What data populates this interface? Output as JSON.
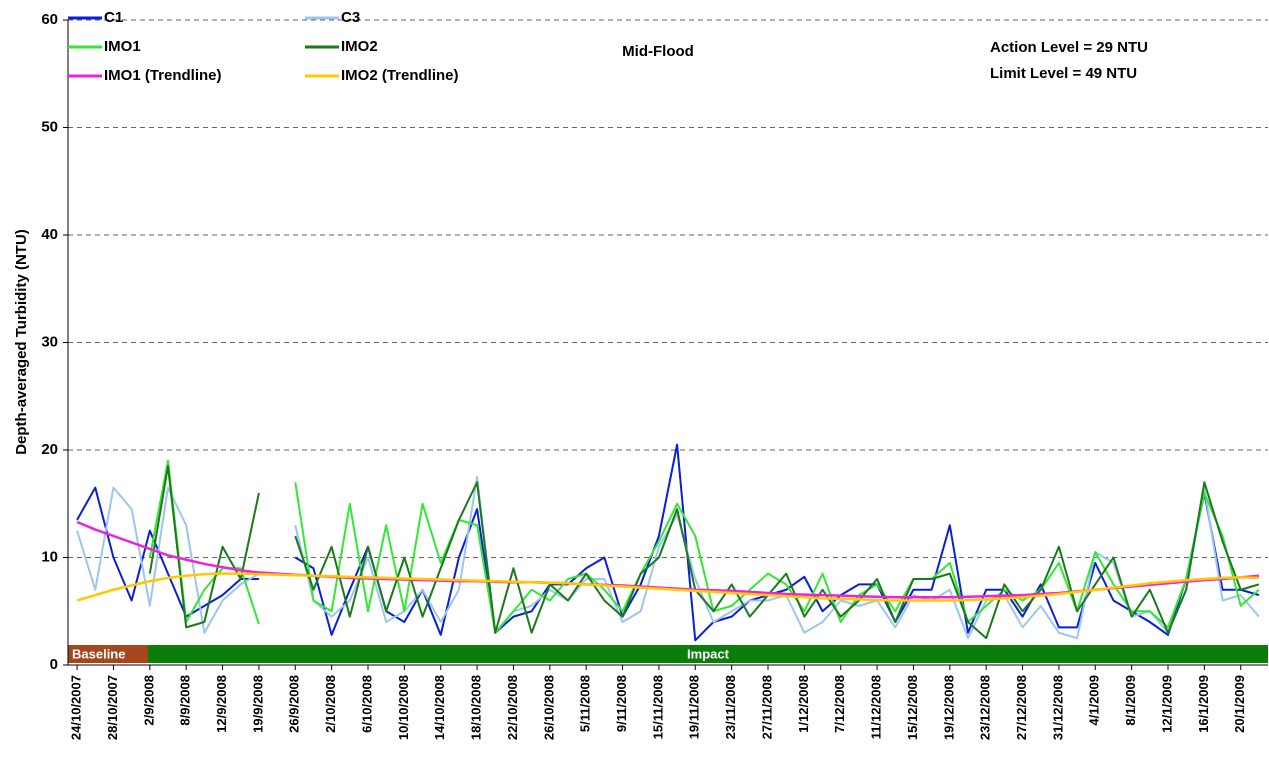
{
  "chart_data": {
    "type": "line",
    "y_label": "Depth-averaged Turbidity (NTU)",
    "annotations": [
      "Mid-Flood",
      "Action Level = 29 NTU",
      "Limit Level = 49 NTU"
    ],
    "phases": [
      {
        "label": "Baseline",
        "color": "#a5461c"
      },
      {
        "label": "Impact",
        "color": "#0b7d0b"
      }
    ],
    "categories": [
      "24/10/2007",
      null,
      "28/10/2007",
      null,
      "2/9/2008",
      null,
      "8/9/2008",
      null,
      "12/9/2008",
      null,
      "19/9/2008",
      null,
      "26/9/2008",
      null,
      "2/10/2008",
      null,
      "6/10/2008",
      null,
      "10/10/2008",
      null,
      "14/10/2008",
      null,
      "18/10/2008",
      null,
      "22/10/2008",
      null,
      "26/10/2008",
      null,
      "5/11/2008",
      null,
      "9/11/2008",
      null,
      "15/11/2008",
      null,
      "19/11/2008",
      null,
      "23/11/2008",
      null,
      "27/11/2008",
      null,
      "1/12/2008",
      null,
      "7/12/2008",
      null,
      "11/12/2008",
      null,
      "15/12/2008",
      null,
      "19/12/2008",
      null,
      "23/12/2008",
      null,
      "27/12/2008",
      null,
      "31/12/2008",
      null,
      "4/1/2009",
      null,
      "8/1/2009",
      null,
      "12/1/2009",
      null,
      "16/1/2009",
      null,
      "20/1/2009",
      null
    ],
    "series": [
      {
        "name": "C1",
        "color": "#0a1ed8",
        "width": 2,
        "values": [
          13.5,
          16.5,
          10,
          6,
          12.5,
          8.5,
          4.5,
          5.5,
          6.5,
          8,
          8,
          null,
          10,
          9,
          2.8,
          7,
          11,
          5,
          4,
          7,
          2.8,
          10,
          14.5,
          3,
          4.5,
          5,
          7.5,
          7.5,
          9,
          10,
          4.5,
          7.5,
          12,
          20.5,
          2.3,
          4,
          4.5,
          6,
          6.5,
          7,
          8.2,
          5,
          6.5,
          7.5,
          7.5,
          4,
          7,
          7,
          13,
          3,
          7,
          7,
          4.5,
          7.5,
          3.5,
          3.5,
          9.5,
          6,
          5,
          4,
          2.8,
          8,
          16,
          7,
          7,
          6.5
        ]
      },
      {
        "name": "C3",
        "color": "#9cc6ee",
        "width": 2,
        "values": [
          12.5,
          7,
          16.5,
          14.5,
          5.5,
          16.5,
          13,
          3,
          6,
          7.5,
          8.5,
          null,
          13,
          6,
          4.5,
          6,
          10,
          4,
          5,
          7,
          4,
          7,
          17.5,
          3,
          5,
          5.5,
          7,
          6,
          8,
          8,
          4,
          5,
          11,
          14,
          8,
          4,
          5,
          6,
          6,
          6.5,
          3,
          4,
          6,
          5.5,
          6,
          3.5,
          6.5,
          6,
          7,
          2.5,
          6,
          6.5,
          3.5,
          5.5,
          3,
          2.5,
          10.5,
          9.5,
          4.5,
          5,
          3,
          7,
          16.5,
          6,
          6.5,
          4.5
        ]
      },
      {
        "name": "IMO1",
        "color": "#33e833",
        "width": 2,
        "values": [
          null,
          null,
          null,
          null,
          10,
          19,
          4,
          7,
          9,
          9,
          3.8,
          null,
          17,
          6,
          5,
          15,
          5,
          13,
          5,
          15,
          9.5,
          13.5,
          13,
          3,
          5,
          7,
          6,
          8,
          8.5,
          7,
          5,
          8.5,
          11.5,
          15,
          12,
          5,
          5.5,
          7,
          8.5,
          7.5,
          5,
          8.5,
          4,
          6.5,
          7.5,
          5,
          8,
          8,
          9.5,
          4,
          5.5,
          7,
          6,
          7,
          9.5,
          5,
          10.5,
          7.5,
          5,
          5,
          3.5,
          8,
          16,
          12,
          5.5,
          7
        ]
      },
      {
        "name": "IMO2",
        "color": "#1a7a1a",
        "width": 2,
        "values": [
          null,
          null,
          null,
          null,
          8.5,
          18.5,
          3.5,
          4,
          11,
          8,
          16,
          null,
          12,
          7,
          11,
          4.5,
          11,
          5,
          10,
          4.5,
          9,
          13.5,
          17,
          3,
          9,
          3,
          7.5,
          6,
          8.5,
          6,
          4.5,
          8.5,
          10,
          14.5,
          7,
          5,
          7.5,
          4.5,
          6.5,
          8.5,
          4.5,
          7,
          4.5,
          6,
          8,
          4,
          8,
          8,
          8.5,
          4,
          2.5,
          7.5,
          5,
          7,
          11,
          5,
          7.5,
          10,
          4.5,
          7,
          3,
          7,
          17,
          11.5,
          7,
          7.5
        ]
      },
      {
        "name": "IMO1 (Trendline)",
        "color": "#ee22dd",
        "width": 2.5,
        "values": [
          13.3,
          12.6,
          12,
          11.4,
          10.8,
          10.2,
          9.8,
          9.4,
          9.1,
          8.8,
          8.6,
          8.5,
          8.4,
          8.3,
          8.2,
          8.1,
          8.05,
          8,
          7.95,
          7.9,
          7.85,
          7.8,
          7.8,
          7.75,
          7.7,
          7.7,
          7.65,
          7.6,
          7.5,
          7.45,
          7.4,
          7.3,
          7.2,
          7.1,
          7,
          6.95,
          6.9,
          6.8,
          6.7,
          6.6,
          6.55,
          6.5,
          6.45,
          6.4,
          6.35,
          6.3,
          6.3,
          6.3,
          6.3,
          6.35,
          6.4,
          6.45,
          6.5,
          6.6,
          6.7,
          6.85,
          7,
          7.15,
          7.3,
          7.45,
          7.6,
          7.75,
          7.9,
          8,
          8.15,
          8.3
        ]
      },
      {
        "name": "IMO2 (Trendline)",
        "color": "#ffc800",
        "width": 2.5,
        "values": [
          6,
          6.5,
          7,
          7.4,
          7.8,
          8.1,
          8.3,
          8.45,
          8.5,
          8.5,
          8.45,
          8.4,
          8.35,
          8.3,
          8.25,
          8.2,
          8.15,
          8.1,
          8.05,
          8,
          7.95,
          7.9,
          7.85,
          7.8,
          7.75,
          7.7,
          7.65,
          7.6,
          7.5,
          7.4,
          7.3,
          7.2,
          7.1,
          7,
          6.9,
          6.8,
          6.7,
          6.6,
          6.5,
          6.4,
          6.3,
          6.2,
          6.15,
          6.1,
          6.05,
          6,
          6,
          6,
          6,
          6.05,
          6.1,
          6.2,
          6.3,
          6.45,
          6.6,
          6.8,
          7,
          7.2,
          7.4,
          7.6,
          7.75,
          7.9,
          8,
          8.1,
          8.15,
          8.1
        ]
      }
    ],
    "ylim": [
      0,
      60
    ],
    "yticks": [
      0,
      10,
      20,
      30,
      40,
      50,
      60
    ],
    "grid": true
  }
}
